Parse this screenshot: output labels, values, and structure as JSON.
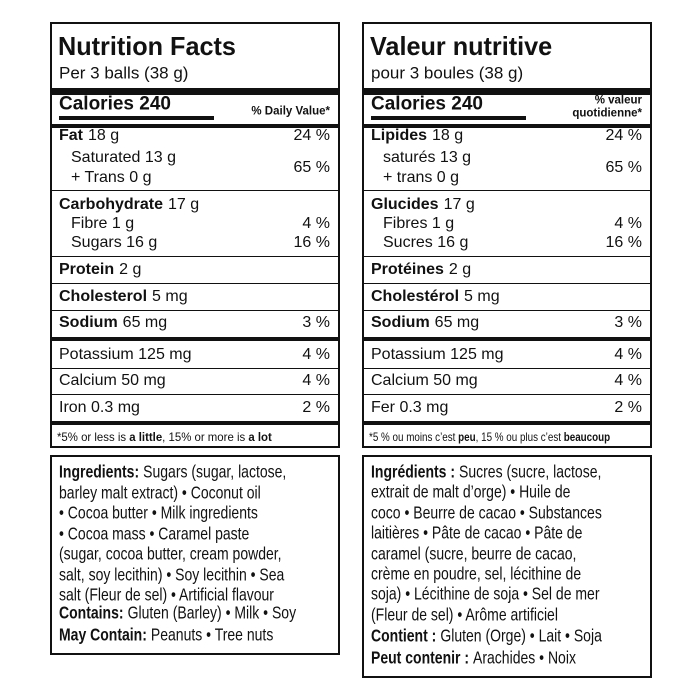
{
  "panels": [
    {
      "nutrition": {
        "title": "Nutrition Facts",
        "serving": "Per 3 balls (38 g)",
        "calories": "Calories 240",
        "dv_header": [
          "% Daily Value*"
        ],
        "rows": [
          {
            "name": "Fat",
            "amount": "18 g",
            "dv": "24 %"
          },
          {
            "lines": [
              "Saturated 13 g",
              "+ Trans 0 g"
            ],
            "dv": "65 %"
          },
          {
            "name": "Carbohydrate",
            "amount": "17 g"
          },
          {
            "lines": [
              "Fibre 1 g"
            ],
            "dv": "4 %"
          },
          {
            "lines": [
              "Sugars 16 g"
            ],
            "dv": "16 %"
          },
          {
            "name": "Protein",
            "amount": "2 g"
          },
          {
            "name": "Cholesterol",
            "amount": "5 mg"
          },
          {
            "name": "Sodium",
            "amount": "65 mg",
            "dv": "3 %"
          },
          {
            "lines": [
              "Potassium 125 mg"
            ],
            "dv": "4 %"
          },
          {
            "lines": [
              "Calcium 50 mg"
            ],
            "dv": "4 %"
          },
          {
            "lines": [
              "Iron 0.3 mg"
            ],
            "dv": "2 %"
          }
        ],
        "footnote": [
          {
            "text": "*5% or less is ",
            "bold": false
          },
          {
            "text": "a little",
            "bold": true
          },
          {
            "text": ", 15% or more is ",
            "bold": false
          },
          {
            "text": "a lot",
            "bold": true
          }
        ]
      },
      "ingredients": {
        "label": "Ingredients:",
        "lines": [
          "Sugars (sugar, lactose,",
          "barley malt extract) • Coconut oil",
          "• Cocoa butter • Milk ingredients",
          "• Cocoa mass • Caramel paste",
          "(sugar, cocoa butter, cream powder,",
          "salt, soy lecithin) • Soy lecithin • Sea",
          "salt (Fleur de sel) • Artificial flavour"
        ],
        "contains": {
          "label": "Contains:",
          "text": "Gluten (Barley) • Milk • Soy"
        },
        "may_contain": {
          "label": "May Contain:",
          "text": "Peanuts • Tree nuts"
        }
      }
    },
    {
      "nutrition": {
        "title": "Valeur nutritive",
        "serving": "pour 3 boules (38 g)",
        "calories": "Calories 240",
        "dv_header": [
          "% valeur",
          "quotidienne*"
        ],
        "rows": [
          {
            "name": "Lipides",
            "amount": "18 g",
            "dv": "24 %"
          },
          {
            "lines": [
              "saturés 13 g",
              "+ trans 0 g"
            ],
            "dv": "65 %"
          },
          {
            "name": "Glucides",
            "amount": "17 g"
          },
          {
            "lines": [
              "Fibres 1 g"
            ],
            "dv": "4 %"
          },
          {
            "lines": [
              "Sucres 16 g"
            ],
            "dv": "16 %"
          },
          {
            "name": "Protéines",
            "amount": "2 g"
          },
          {
            "name": "Cholestérol",
            "amount": "5 mg"
          },
          {
            "name": "Sodium",
            "amount": "65 mg",
            "dv": "3 %"
          },
          {
            "lines": [
              "Potassium 125 mg"
            ],
            "dv": "4 %"
          },
          {
            "lines": [
              "Calcium 50 mg"
            ],
            "dv": "4 %"
          },
          {
            "lines": [
              "Fer 0.3 mg"
            ],
            "dv": "2 %"
          }
        ],
        "footnote": [
          {
            "text": "*5 % ou moins c’est ",
            "bold": false
          },
          {
            "text": "peu",
            "bold": true
          },
          {
            "text": ", 15 % ou plus c’est ",
            "bold": false
          },
          {
            "text": "beaucoup",
            "bold": true
          }
        ]
      },
      "ingredients": {
        "label": "Ingrédients :",
        "lines": [
          "Sucres (sucre, lactose,",
          "extrait de malt d’orge) • Huile de",
          "coco • Beurre de cacao • Substances",
          "laitières • Pâte de cacao • Pâte de",
          "caramel (sucre, beurre de cacao,",
          "crème en poudre, sel, lécithine de",
          "soja) • Lécithine de soja • Sel de mer",
          "(Fleur de sel) • Arôme artificiel"
        ],
        "contains": {
          "label": "Contient :",
          "text": "Gluten (Orge) • Lait • Soja"
        },
        "may_contain": {
          "label": "Peut contenir :",
          "text": "Arachides • Noix"
        }
      }
    }
  ]
}
